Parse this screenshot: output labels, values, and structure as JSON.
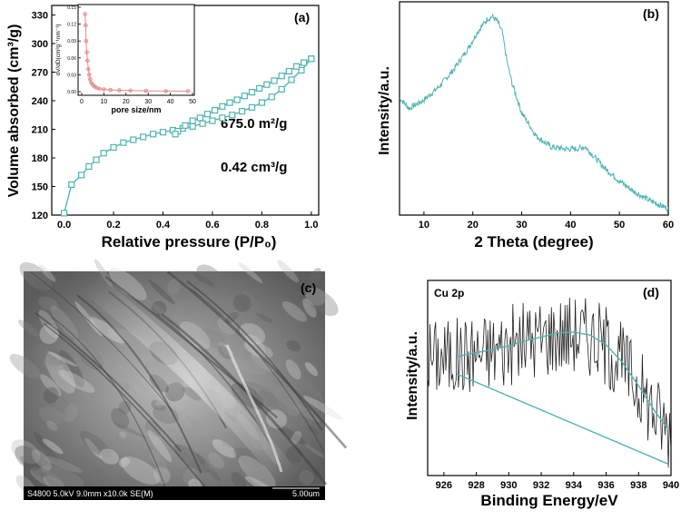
{
  "colors": {
    "teal": "#4fb3b0",
    "pink": "#e58a8a",
    "axis": "#000000",
    "noise": "#222222",
    "sem_bar": "#000000"
  },
  "chart_data": [
    {
      "id": "a",
      "type": "line",
      "panel_label": "(a)",
      "title": "",
      "xlabel": "Relative pressure (P/P₀)",
      "ylabel": "Volume absorbed (cm³/g)",
      "xlim": [
        -0.05,
        1.03
      ],
      "ylim": [
        120,
        340
      ],
      "xticks": [
        "0.0",
        "0.2",
        "0.4",
        "0.6",
        "0.8",
        "1.0"
      ],
      "yticks": [
        "120",
        "150",
        "180",
        "210",
        "240",
        "270",
        "300",
        "330"
      ],
      "annotations": [
        "675.0 m²/g",
        "0.42 cm³/g"
      ],
      "series": [
        {
          "name": "adsorption",
          "x": [
            0.0,
            0.03,
            0.07,
            0.1,
            0.13,
            0.16,
            0.2,
            0.24,
            0.28,
            0.32,
            0.36,
            0.4,
            0.44,
            0.48,
            0.52,
            0.56,
            0.6,
            0.64,
            0.68,
            0.72,
            0.76,
            0.8,
            0.84,
            0.88,
            0.92,
            0.96,
            1.0
          ],
          "y": [
            122,
            152,
            162,
            171,
            178,
            185,
            191,
            196,
            199,
            202,
            205,
            207,
            209,
            211,
            213,
            216,
            219,
            222,
            225,
            229,
            233,
            238,
            244,
            252,
            262,
            272,
            284
          ]
        },
        {
          "name": "desorption",
          "x": [
            1.0,
            0.97,
            0.94,
            0.91,
            0.88,
            0.85,
            0.82,
            0.79,
            0.76,
            0.73,
            0.7,
            0.67,
            0.64,
            0.61,
            0.58,
            0.55,
            0.52,
            0.49,
            0.46,
            0.45
          ],
          "y": [
            284,
            280,
            276,
            271,
            266,
            261,
            257,
            253,
            249,
            245,
            241,
            238,
            234,
            230,
            226,
            222,
            219,
            214,
            208,
            205
          ]
        }
      ],
      "inset": {
        "type": "line",
        "xlabel": "pore size/nm",
        "ylabel": "dV/dD(cm³g⁻¹nm⁻¹)",
        "xlim": [
          0,
          50
        ],
        "ylim": [
          0,
          0.15
        ],
        "xticks": [
          "0",
          "10",
          "20",
          "30",
          "40",
          "50"
        ],
        "yticks": [
          "0.00",
          "0.03",
          "0.06",
          "0.09",
          "0.12",
          "0.15"
        ],
        "x": [
          1.5,
          1.8,
          2.0,
          2.3,
          2.6,
          3.0,
          3.4,
          3.8,
          4.3,
          5.0,
          5.8,
          6.7,
          8,
          10,
          13,
          17,
          22,
          29,
          38,
          48
        ],
        "y": [
          0.138,
          0.118,
          0.09,
          0.07,
          0.055,
          0.04,
          0.03,
          0.022,
          0.016,
          0.012,
          0.009,
          0.007,
          0.005,
          0.004,
          0.003,
          0.0025,
          0.002,
          0.0015,
          0.001,
          0.001
        ]
      }
    },
    {
      "id": "b",
      "type": "line",
      "panel_label": "(b)",
      "xlabel": "2 Theta (degree)",
      "ylabel": "Intensity/a.u.",
      "xlim": [
        5,
        60
      ],
      "ylim": [
        0,
        1
      ],
      "xticks": [
        "10",
        "20",
        "30",
        "40",
        "50",
        "60"
      ],
      "series": [
        {
          "name": "XRD",
          "x": [
            5,
            7,
            10,
            13,
            16,
            19,
            21,
            23,
            24,
            25,
            26,
            27,
            28,
            30,
            33,
            36,
            39,
            41,
            43,
            45,
            47,
            50,
            53,
            56,
            58,
            60
          ],
          "y": [
            0.55,
            0.5,
            0.54,
            0.6,
            0.68,
            0.78,
            0.86,
            0.92,
            0.93,
            0.91,
            0.86,
            0.72,
            0.62,
            0.48,
            0.37,
            0.32,
            0.31,
            0.31,
            0.32,
            0.27,
            0.22,
            0.16,
            0.11,
            0.07,
            0.05,
            0.03
          ]
        }
      ]
    },
    {
      "id": "d",
      "type": "line",
      "panel_label": "(d)",
      "series_label": "Cu 2p",
      "xlabel": "Binding Energy/eV",
      "ylabel": "Intensity/a.u.",
      "xlim": [
        925,
        940
      ],
      "ylim": [
        0,
        1
      ],
      "xticks": [
        "926",
        "928",
        "930",
        "932",
        "934",
        "936",
        "938",
        "940"
      ],
      "series": [
        {
          "name": "raw",
          "x": [],
          "y": []
        },
        {
          "name": "fit",
          "x": [
            926.8,
            928,
            929,
            930,
            931,
            932,
            933,
            934,
            935,
            936,
            937,
            938,
            939,
            939.8
          ],
          "y": [
            0.61,
            0.63,
            0.645,
            0.665,
            0.69,
            0.71,
            0.73,
            0.735,
            0.72,
            0.67,
            0.58,
            0.46,
            0.33,
            0.24
          ]
        },
        {
          "name": "baseline",
          "x": [
            926.8,
            939.8
          ],
          "y": [
            0.52,
            0.06
          ]
        }
      ]
    }
  ],
  "sem": {
    "panel_label": "(c)",
    "caption": "S4800 5.0kV 9.0mm x10.0k SE(M)",
    "scale_label": "5.00um"
  }
}
